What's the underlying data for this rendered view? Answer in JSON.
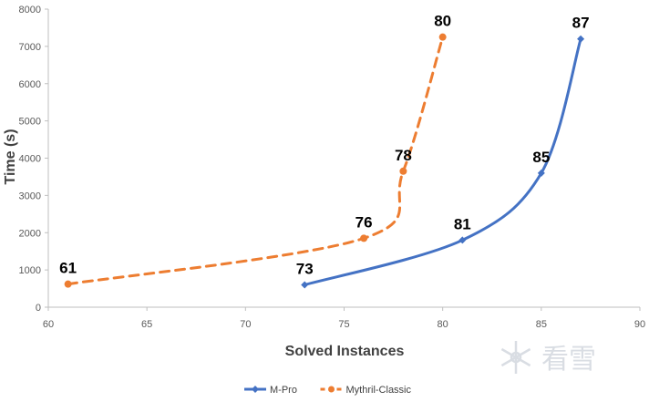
{
  "chart_data": {
    "type": "line",
    "title": "",
    "xlabel": "Solved Instances",
    "ylabel": "Time (s)",
    "xlim": [
      60,
      90
    ],
    "ylim": [
      0,
      8000
    ],
    "xticks": [
      "60",
      "65",
      "70",
      "75",
      "80",
      "85",
      "90"
    ],
    "yticks": [
      "0",
      "1000",
      "2000",
      "3000",
      "4000",
      "5000",
      "6000",
      "7000",
      "8000"
    ],
    "grid": false,
    "legend_position": "bottom",
    "series": [
      {
        "name": "M-Pro",
        "color": "#4472C4",
        "line_style": "solid",
        "marker": "diamond",
        "x": [
          73,
          81,
          85,
          87
        ],
        "y": [
          600,
          1800,
          3600,
          7200
        ],
        "labels": [
          "73",
          "81",
          "85",
          "87"
        ]
      },
      {
        "name": "Mythril-Classic",
        "color": "#ED7D31",
        "line_style": "dashed",
        "marker": "circle",
        "x": [
          61,
          76,
          78,
          80
        ],
        "y": [
          620,
          1850,
          3650,
          7250
        ],
        "labels": [
          "61",
          "76",
          "78",
          "80"
        ]
      }
    ]
  },
  "watermark": {
    "text": "看雪",
    "icon": "snowflake-icon"
  }
}
